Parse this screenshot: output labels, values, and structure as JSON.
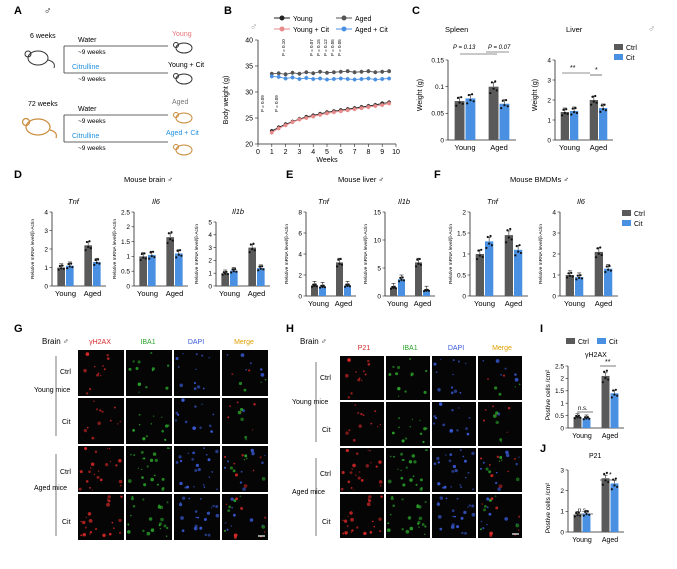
{
  "colors": {
    "young": "#222222",
    "aged": "#555555",
    "young_cit": "#e88a8a",
    "aged_cit": "#4a90e2",
    "ctrl_bar": "#5a5a5a",
    "cit_bar": "#4a90e2",
    "cit_text": "#1f8fe0",
    "young_label": "#e8757a",
    "aged_label_text": "#777777",
    "red_channel": "#d62828",
    "green_channel": "#2aa22a",
    "blue_channel": "#3a5bd8",
    "merge_channel": "#e0a000",
    "mouse_young": "#333333",
    "mouse_aged": "#c98a3a"
  },
  "panelA": {
    "letter": "A",
    "sex": "♂",
    "age_young": "6 weeks",
    "age_aged": "72 weeks",
    "water": "Water",
    "citrulline": "Citrulline",
    "duration": "~9 weeks",
    "label_young": "Young",
    "label_young_cit": "Young + Cit",
    "label_aged": "Aged",
    "label_aged_cit": "Aged + Cit"
  },
  "panelB": {
    "letter": "B",
    "sex": "♂",
    "ylabel": "Body weight (g)",
    "xlabel": "Weeks",
    "legend": [
      "Young",
      "Aged",
      "Young + Cit",
      "Aged + Cit"
    ],
    "p_top": [
      "P = 0.10",
      "P = 0.07",
      "P = 0.15",
      "P = 0.12",
      "P = 0.05",
      "P = 0.05"
    ],
    "p_bottom": [
      "P = 0.09",
      "P = 0.09"
    ]
  },
  "panelC": {
    "letter": "C",
    "sex": "♂",
    "spleen_title": "Spleen",
    "liver_title": "Liver",
    "ylabel": "Weight (g)",
    "p1": "P = 0.13",
    "p2": "P = 0.07",
    "sig_liver": "**",
    "sig_liver2": "*",
    "legend_ctrl": "Ctrl",
    "legend_cit": "Cit",
    "xcat": [
      "Young",
      "Aged"
    ]
  },
  "panelD": {
    "letter": "D",
    "title": "Mouse brain ♂",
    "genes": [
      "Tnf",
      "Il6",
      "Il1b"
    ],
    "ylabel": "Relative mRNA level/β-Actin",
    "xcat": [
      "Young",
      "Aged"
    ]
  },
  "panelE": {
    "letter": "E",
    "title": "Mouse liver ♂",
    "genes": [
      "Tnf",
      "Il1b"
    ],
    "ylabel": "Relative mRNA level/β-Actin",
    "xcat": [
      "Young",
      "Aged"
    ]
  },
  "panelF": {
    "letter": "F",
    "title": "Mouse BMDMs ♂",
    "genes": [
      "Tnf",
      "Il6"
    ],
    "ylabel": "Relative mRNA level/β-Actin",
    "xcat": [
      "Young",
      "Aged"
    ],
    "legend_ctrl": "Ctrl",
    "legend_cit": "Cit"
  },
  "panelG": {
    "letter": "G",
    "title": "Brain ♂",
    "channels": [
      "γH2AX",
      "IBA1",
      "DAPI",
      "Merge"
    ],
    "group_young": "Young mice",
    "group_aged": "Aged mice",
    "rows": [
      "Ctrl",
      "Cit",
      "Ctrl",
      "Cit"
    ]
  },
  "panelH": {
    "letter": "H",
    "title": "Brain ♂",
    "channels": [
      "P21",
      "IBA1",
      "DAPI",
      "Merge"
    ],
    "group_young": "Young mice",
    "group_aged": "Aged mice",
    "rows": [
      "Ctrl",
      "Cit",
      "Ctrl",
      "Cit"
    ]
  },
  "panelI": {
    "letter": "I",
    "legend_ctrl": "Ctrl",
    "legend_cit": "Cit",
    "title": "γH2AX",
    "ylabel": "Postive cells /cm²",
    "ns": "n.s.",
    "sig": "**",
    "xcat": [
      "Young",
      "Aged"
    ]
  },
  "panelJ": {
    "letter": "J",
    "title": "P21",
    "ylabel": "Postive cells /cm²",
    "ns": "n.s.",
    "sig": "*",
    "xcat": [
      "Young",
      "Aged"
    ]
  },
  "chart_data": [
    {
      "id": "B",
      "type": "line",
      "title": "",
      "xlabel": "Weeks",
      "ylabel": "Body weight (g)",
      "xlim": [
        0,
        10
      ],
      "ylim": [
        20,
        40
      ],
      "xticks": [
        0,
        1,
        2,
        3,
        4,
        5,
        6,
        7,
        8,
        9,
        10
      ],
      "yticks": [
        20,
        25,
        30,
        35,
        40
      ],
      "x": [
        1,
        1.5,
        2,
        2.5,
        3,
        3.5,
        4,
        4.5,
        5,
        5.5,
        6,
        6.5,
        7,
        7.5,
        8,
        8.5,
        9,
        9.5
      ],
      "series": [
        {
          "name": "Young",
          "values": [
            22.5,
            23.2,
            23.8,
            24.3,
            24.8,
            25.2,
            25.5,
            25.8,
            26.1,
            26.3,
            26.5,
            26.7,
            26.9,
            27.1,
            27.3,
            27.5,
            27.8,
            28.0
          ]
        },
        {
          "name": "Young + Cit",
          "values": [
            22.2,
            23.0,
            23.6,
            24.2,
            24.7,
            25.0,
            25.3,
            25.6,
            25.9,
            26.1,
            26.3,
            26.5,
            26.7,
            26.9,
            27.1,
            27.3,
            27.5,
            27.8
          ]
        },
        {
          "name": "Aged",
          "values": [
            33.5,
            33.6,
            33.4,
            33.7,
            33.5,
            33.8,
            33.6,
            33.9,
            33.7,
            33.8,
            33.9,
            34.0,
            33.8,
            33.9,
            34.0,
            33.8,
            33.9,
            34.0
          ]
        },
        {
          "name": "Aged + Cit",
          "values": [
            33.0,
            32.9,
            32.6,
            32.8,
            32.5,
            32.7,
            32.5,
            32.6,
            32.4,
            32.5,
            32.6,
            32.5,
            32.4,
            32.5,
            32.6,
            32.4,
            32.5,
            32.6
          ]
        }
      ]
    },
    {
      "id": "C-spleen",
      "type": "bar",
      "title": "Spleen",
      "ylabel": "Weight (g)",
      "ylim": [
        0,
        0.15
      ],
      "yticks": [
        0,
        0.05,
        0.1,
        0.15
      ],
      "categories": [
        "Young",
        "Aged"
      ],
      "series": [
        {
          "name": "Ctrl",
          "values": [
            0.073,
            0.1
          ]
        },
        {
          "name": "Cit",
          "values": [
            0.078,
            0.068
          ]
        }
      ]
    },
    {
      "id": "C-liver",
      "type": "bar",
      "title": "Liver",
      "ylabel": "Weight (g)",
      "ylim": [
        0,
        4
      ],
      "yticks": [
        0,
        1,
        2,
        3,
        4
      ],
      "categories": [
        "Young",
        "Aged"
      ],
      "series": [
        {
          "name": "Ctrl",
          "values": [
            1.4,
            2.0
          ]
        },
        {
          "name": "Cit",
          "values": [
            1.45,
            1.6
          ]
        }
      ]
    },
    {
      "id": "D-Tnf",
      "type": "bar",
      "title": "Tnf",
      "ylim": [
        0,
        4
      ],
      "yticks": [
        0,
        1,
        2,
        3,
        4
      ],
      "categories": [
        "Young",
        "Aged"
      ],
      "series": [
        {
          "name": "Ctrl",
          "values": [
            1.0,
            2.2
          ]
        },
        {
          "name": "Cit",
          "values": [
            1.1,
            1.3
          ]
        }
      ]
    },
    {
      "id": "D-Il6",
      "type": "bar",
      "title": "Il6",
      "ylim": [
        0,
        2.5
      ],
      "yticks": [
        0,
        0.5,
        1.0,
        1.5,
        2.0,
        2.5
      ],
      "categories": [
        "Young",
        "Aged"
      ],
      "series": [
        {
          "name": "Ctrl",
          "values": [
            1.0,
            1.65
          ]
        },
        {
          "name": "Cit",
          "values": [
            1.05,
            1.1
          ]
        }
      ]
    },
    {
      "id": "D-Il1b",
      "type": "bar",
      "title": "Il1b",
      "ylim": [
        0,
        5
      ],
      "yticks": [
        0,
        1,
        2,
        3,
        4,
        5
      ],
      "categories": [
        "Young",
        "Aged"
      ],
      "series": [
        {
          "name": "Ctrl",
          "values": [
            1.0,
            3.0
          ]
        },
        {
          "name": "Cit",
          "values": [
            1.2,
            1.4
          ]
        }
      ]
    },
    {
      "id": "E-Tnf",
      "type": "bar",
      "title": "Tnf",
      "ylim": [
        0,
        8
      ],
      "yticks": [
        0,
        2,
        4,
        6,
        8
      ],
      "categories": [
        "Young",
        "Aged"
      ],
      "series": [
        {
          "name": "Ctrl",
          "values": [
            1.0,
            3.2
          ]
        },
        {
          "name": "Cit",
          "values": [
            0.9,
            1.0
          ]
        }
      ]
    },
    {
      "id": "E-Il1b",
      "type": "bar",
      "title": "Il1b",
      "ylim": [
        0,
        15
      ],
      "yticks": [
        0,
        5,
        10,
        15
      ],
      "categories": [
        "Young",
        "Aged"
      ],
      "series": [
        {
          "name": "Ctrl",
          "values": [
            1.5,
            6.0
          ]
        },
        {
          "name": "Cit",
          "values": [
            3.0,
            1.0
          ]
        }
      ]
    },
    {
      "id": "F-Tnf",
      "type": "bar",
      "title": "Tnf",
      "ylim": [
        0,
        2.0
      ],
      "yticks": [
        0,
        0.5,
        1.0,
        1.5,
        2.0
      ],
      "categories": [
        "Young",
        "Aged"
      ],
      "series": [
        {
          "name": "Ctrl",
          "values": [
            1.0,
            1.45
          ]
        },
        {
          "name": "Cit",
          "values": [
            1.3,
            1.1
          ]
        }
      ]
    },
    {
      "id": "F-Il6",
      "type": "bar",
      "title": "Il6",
      "ylim": [
        0,
        4
      ],
      "yticks": [
        0,
        1,
        2,
        3,
        4
      ],
      "categories": [
        "Young",
        "Aged"
      ],
      "series": [
        {
          "name": "Ctrl",
          "values": [
            1.0,
            2.1
          ]
        },
        {
          "name": "Cit",
          "values": [
            0.9,
            1.3
          ]
        }
      ]
    },
    {
      "id": "I",
      "type": "bar",
      "title": "γH2AX",
      "ylabel": "Postive cells /cm²",
      "ylim": [
        0,
        2.5
      ],
      "yticks": [
        0,
        0.5,
        1.0,
        1.5,
        2.0,
        2.5
      ],
      "categories": [
        "Young",
        "Aged"
      ],
      "series": [
        {
          "name": "Ctrl",
          "values": [
            0.45,
            2.1
          ]
        },
        {
          "name": "Cit",
          "values": [
            0.4,
            1.4
          ]
        }
      ]
    },
    {
      "id": "J",
      "type": "bar",
      "title": "P21",
      "ylabel": "Postive cells /cm²",
      "ylim": [
        0,
        3
      ],
      "yticks": [
        0,
        1,
        2,
        3
      ],
      "categories": [
        "Young",
        "Aged"
      ],
      "series": [
        {
          "name": "Ctrl",
          "values": [
            0.85,
            2.6
          ]
        },
        {
          "name": "Cit",
          "values": [
            0.9,
            2.35
          ]
        }
      ]
    }
  ]
}
